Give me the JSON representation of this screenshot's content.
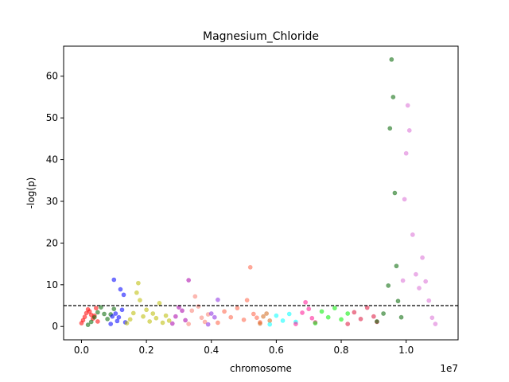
{
  "chart_data": {
    "type": "scatter",
    "title": "Magnesium_Chloride",
    "xlabel": "chromosome",
    "ylabel": "-log(p)",
    "x_offset_text": "1e7",
    "xlim": [
      -0.055,
      1.16
    ],
    "ylim": [
      -3.2,
      67.2
    ],
    "x_unit_note": "x values in units of 1e7 (genomic position)",
    "xticks": [
      0.0,
      0.2,
      0.4,
      0.6,
      0.8,
      1.0
    ],
    "xtick_labels": [
      "0.0",
      "0.2",
      "0.4",
      "0.6",
      "0.8",
      "1.0"
    ],
    "yticks": [
      0,
      10,
      20,
      30,
      40,
      50,
      60
    ],
    "ytick_labels": [
      "0",
      "10",
      "20",
      "30",
      "40",
      "50",
      "60"
    ],
    "threshold": 5,
    "threshold_style": "dashed",
    "grid": false,
    "legend": "none",
    "series": [
      {
        "color": "#ff0000",
        "x": [
          0.0,
          0.005,
          0.01,
          0.015,
          0.02,
          0.025,
          0.03,
          0.035,
          0.04,
          0.045,
          0.05
        ],
        "y": [
          0.8,
          1.5,
          2.3,
          3.2,
          4.1,
          3.6,
          2.8,
          1.9,
          2.6,
          4.4,
          1.2
        ]
      },
      {
        "color": "#006400",
        "x": [
          0.02,
          0.03,
          0.04,
          0.05,
          0.06,
          0.07,
          0.08,
          0.09,
          0.1
        ],
        "y": [
          0.4,
          1.1,
          2.2,
          3.4,
          4.6,
          3.0,
          1.8,
          2.9,
          4.2
        ]
      },
      {
        "color": "#0000ff",
        "x": [
          0.09,
          0.095,
          0.1,
          0.105,
          0.11,
          0.115,
          0.12,
          0.125,
          0.13,
          0.135
        ],
        "y": [
          0.6,
          2.4,
          11.2,
          3.1,
          1.3,
          2.2,
          8.9,
          4.0,
          7.6,
          1.0
        ]
      },
      {
        "color": "#bbbb00",
        "x": [
          0.14,
          0.15,
          0.16,
          0.17,
          0.175,
          0.18,
          0.19,
          0.2,
          0.21,
          0.22,
          0.23,
          0.24,
          0.25,
          0.26,
          0.27
        ],
        "y": [
          0.8,
          1.7,
          3.2,
          8.1,
          10.4,
          6.3,
          2.4,
          4.0,
          1.2,
          3.1,
          2.0,
          5.6,
          0.9,
          2.6,
          1.4
        ]
      },
      {
        "color": "#aa00aa",
        "x": [
          0.28,
          0.29,
          0.3,
          0.31,
          0.32,
          0.33
        ],
        "y": [
          0.7,
          2.4,
          4.6,
          3.8,
          1.5,
          11.1
        ]
      },
      {
        "color": "#fa8072",
        "x": [
          0.33,
          0.34,
          0.35,
          0.36,
          0.37,
          0.38,
          0.39
        ],
        "y": [
          0.6,
          3.8,
          7.2,
          4.8,
          2.1,
          1.1,
          2.9
        ]
      },
      {
        "color": "#8a2be2",
        "x": [
          0.39,
          0.4,
          0.41,
          0.42
        ],
        "y": [
          0.5,
          3.1,
          2.2,
          6.4
        ]
      },
      {
        "color": "#ff6347",
        "x": [
          0.42,
          0.44,
          0.46,
          0.48,
          0.5,
          0.51,
          0.52,
          0.53,
          0.54,
          0.55
        ],
        "y": [
          0.9,
          3.6,
          2.2,
          4.4,
          1.6,
          6.3,
          14.2,
          3.0,
          2.1,
          1.0
        ]
      },
      {
        "color": "#d2691e",
        "x": [
          0.55,
          0.56,
          0.57,
          0.58
        ],
        "y": [
          0.7,
          2.4,
          3.1,
          1.4
        ]
      },
      {
        "color": "#00ffff",
        "x": [
          0.58,
          0.6,
          0.62,
          0.64,
          0.66
        ],
        "y": [
          0.5,
          2.6,
          1.4,
          3.0,
          1.1
        ]
      },
      {
        "color": "#ff1493",
        "x": [
          0.66,
          0.68,
          0.69,
          0.7,
          0.71,
          0.72
        ],
        "y": [
          0.6,
          3.3,
          5.8,
          4.2,
          2.0,
          1.0
        ]
      },
      {
        "color": "#00ee00",
        "x": [
          0.72,
          0.74,
          0.76,
          0.78,
          0.8,
          0.82
        ],
        "y": [
          0.8,
          3.6,
          2.2,
          4.4,
          1.7,
          3.1
        ]
      },
      {
        "color": "#dc143c",
        "x": [
          0.82,
          0.84,
          0.86,
          0.88,
          0.9,
          0.91
        ],
        "y": [
          0.6,
          3.4,
          1.8,
          4.5,
          2.4,
          1.1
        ]
      },
      {
        "color": "#006400",
        "x": [
          0.91,
          0.93,
          0.945,
          0.95,
          0.955,
          0.96,
          0.965,
          0.97,
          0.975,
          0.985
        ],
        "y": [
          1.2,
          3.1,
          9.8,
          47.5,
          64.0,
          55.0,
          32.0,
          14.5,
          6.1,
          2.2
        ]
      },
      {
        "color": "#da70d6",
        "x": [
          0.99,
          0.995,
          1.0,
          1.005,
          1.01,
          1.02,
          1.03,
          1.04,
          1.05,
          1.06,
          1.07,
          1.08,
          1.09
        ],
        "y": [
          11.0,
          30.5,
          41.5,
          53.0,
          47.0,
          22.0,
          12.5,
          9.2,
          16.5,
          10.8,
          6.2,
          2.1,
          0.6
        ]
      }
    ]
  }
}
